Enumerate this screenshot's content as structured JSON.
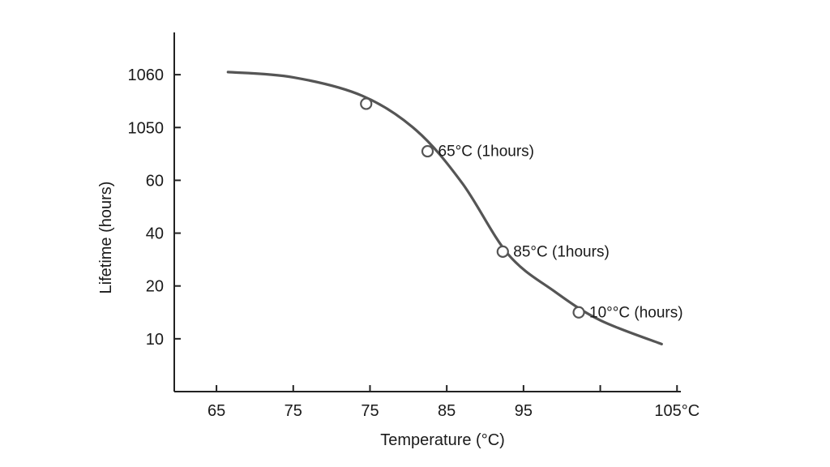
{
  "chart_data": {
    "type": "line",
    "title": "",
    "xlabel": "Temperature (°C)",
    "ylabel": "Lifetime (hours)",
    "x_tick_labels": [
      "65",
      "75",
      "75",
      "85",
      "95",
      "",
      "105°C"
    ],
    "y_tick_labels": [
      "10",
      "20",
      "40",
      "60",
      "1050",
      "1060"
    ],
    "x_axis_note": "tick labels are printed as shown; axis is treated as categorical positions 0-6",
    "x_range": [
      -0.55,
      6.05
    ],
    "y_range": [
      -1.0,
      5.8
    ],
    "series": [
      {
        "name": "Lifetime curve",
        "x": [
          0.15,
          1.0,
          1.9,
          2.6,
          3.2,
          3.8,
          4.4,
          5.0,
          5.8
        ],
        "y": [
          5.05,
          4.95,
          4.6,
          3.95,
          2.95,
          1.6,
          0.9,
          0.35,
          -0.1
        ]
      }
    ],
    "markers": [
      {
        "x": 1.95,
        "y": 4.45,
        "label": ""
      },
      {
        "x": 2.75,
        "y": 3.55,
        "label": "65°C (1hours)"
      },
      {
        "x": 3.73,
        "y": 1.65,
        "label": "85°C (1hours)"
      },
      {
        "x": 4.72,
        "y": 0.5,
        "label": "10°°C (hours)"
      }
    ]
  },
  "colors": {
    "curve": "#555555",
    "axis": "#222222",
    "marker_fill": "#ffffff",
    "marker_stroke": "#555555",
    "text": "#1a1a1a"
  }
}
